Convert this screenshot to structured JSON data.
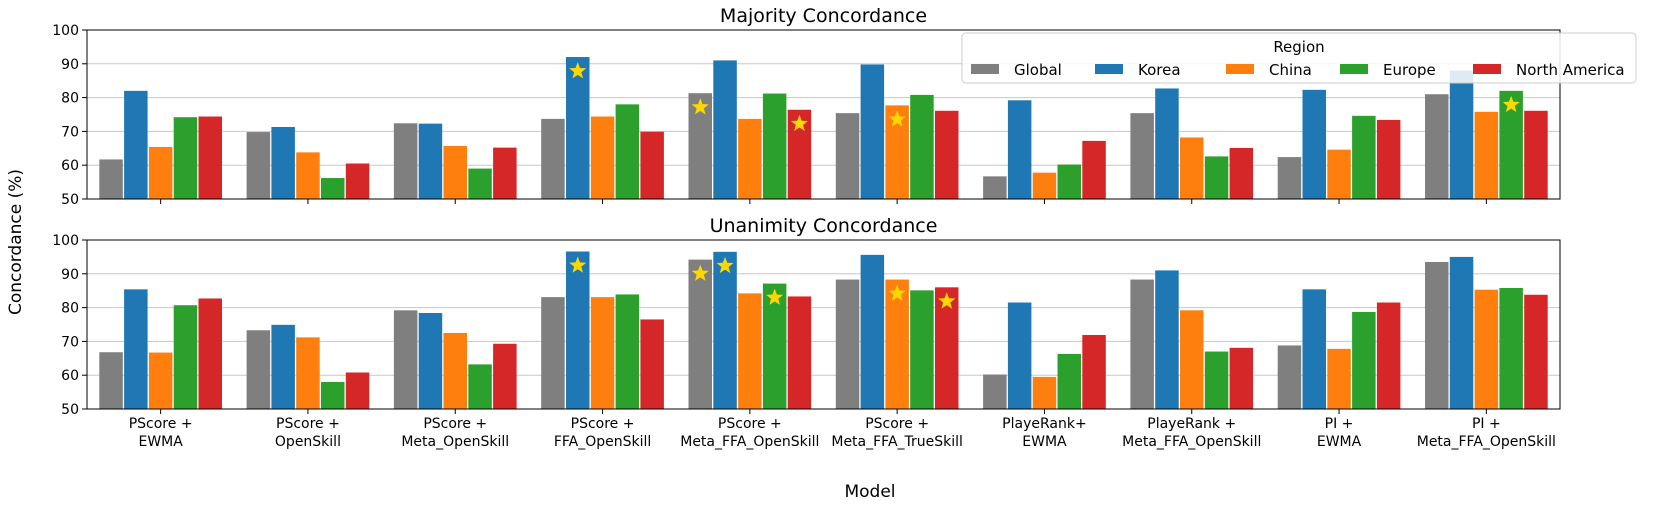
{
  "chart_data": {
    "type": "bar",
    "ylabel": "Concordance (%)",
    "xlabel": "Model",
    "ylim": [
      50,
      100
    ],
    "yticks": [
      "50",
      "60",
      "70",
      "80",
      "90",
      "100"
    ],
    "grid": "horizontal",
    "legend": {
      "title": "Region",
      "position": "top-right"
    },
    "colors": {
      "Global": "#7f7f7f",
      "Korea": "#1f77b4",
      "China": "#ff7f0e",
      "Europe": "#2ca02c",
      "North America": "#d62728",
      "star": "#ffd700"
    },
    "categories": [
      [
        "PScore +",
        "EWMA"
      ],
      [
        "PScore +",
        "OpenSkill"
      ],
      [
        "PScore +",
        "Meta_OpenSkill"
      ],
      [
        "PScore +",
        "FFA_OpenSkill"
      ],
      [
        "PScore +",
        "Meta_FFA_OpenSkill"
      ],
      [
        "PScore +",
        "Meta_FFA_TrueSkill"
      ],
      [
        "PlayeRank+",
        "EWMA"
      ],
      [
        "PlayeRank +",
        "Meta_FFA_OpenSkill"
      ],
      [
        "PI +",
        "EWMA"
      ],
      [
        "PI +",
        "Meta_FFA_OpenSkill"
      ]
    ],
    "panels": [
      {
        "title": "Majority Concordance",
        "series": [
          {
            "name": "Global",
            "values": [
              61.7,
              69.8,
              72.4,
              73.7,
              81.3,
              75.4,
              56.7,
              75.4,
              62.4,
              81.0
            ]
          },
          {
            "name": "Korea",
            "values": [
              82.0,
              71.3,
              72.3,
              92.0,
              91.0,
              89.8,
              79.2,
              82.7,
              82.3,
              88.0
            ]
          },
          {
            "name": "China",
            "values": [
              65.4,
              63.8,
              65.7,
              74.4,
              73.7,
              77.7,
              57.8,
              68.2,
              64.6,
              75.8
            ]
          },
          {
            "name": "Europe",
            "values": [
              74.2,
              56.2,
              59.0,
              78.0,
              81.2,
              80.8,
              60.2,
              62.6,
              74.6,
              82.0
            ]
          },
          {
            "name": "North America",
            "values": [
              74.4,
              60.5,
              65.2,
              69.9,
              76.4,
              76.1,
              67.2,
              65.1,
              73.4,
              76.1
            ]
          }
        ],
        "stars": [
          {
            "category": 3,
            "series": "Korea"
          },
          {
            "category": 4,
            "series": "Global"
          },
          {
            "category": 4,
            "series": "North America"
          },
          {
            "category": 5,
            "series": "China"
          },
          {
            "category": 9,
            "series": "Europe"
          }
        ]
      },
      {
        "title": "Unanimity Concordance",
        "series": [
          {
            "name": "Global",
            "values": [
              66.8,
              73.3,
              79.2,
              83.1,
              94.2,
              88.3,
              60.2,
              88.3,
              68.8,
              93.5
            ]
          },
          {
            "name": "Korea",
            "values": [
              85.4,
              74.9,
              78.4,
              96.6,
              96.5,
              95.6,
              81.5,
              91.0,
              85.4,
              95.0
            ]
          },
          {
            "name": "China",
            "values": [
              66.7,
              71.2,
              72.5,
              83.1,
              84.2,
              88.3,
              59.5,
              79.2,
              67.8,
              85.3
            ]
          },
          {
            "name": "Europe",
            "values": [
              80.7,
              58.0,
              63.2,
              83.9,
              87.1,
              85.1,
              66.3,
              67.0,
              78.7,
              85.8
            ]
          },
          {
            "name": "North America",
            "values": [
              82.7,
              60.8,
              69.3,
              76.5,
              83.3,
              86.0,
              71.9,
              68.1,
              81.5,
              83.8
            ]
          }
        ],
        "stars": [
          {
            "category": 3,
            "series": "Korea"
          },
          {
            "category": 4,
            "series": "Global"
          },
          {
            "category": 4,
            "series": "Korea"
          },
          {
            "category": 4,
            "series": "Europe"
          },
          {
            "category": 5,
            "series": "China"
          },
          {
            "category": 5,
            "series": "North America"
          }
        ]
      }
    ]
  }
}
